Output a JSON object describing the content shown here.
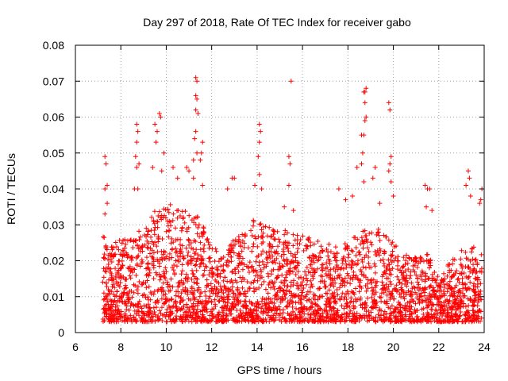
{
  "chart_data": {
    "type": "scatter",
    "title": "Day 297 of 2018, Rate Of TEC Index for receiver gabo",
    "xlabel": "GPS time / hours",
    "ylabel": "ROTI / TECUs",
    "xlim": [
      6,
      24
    ],
    "ylim": [
      0,
      0.08
    ],
    "xticks": [
      6,
      8,
      10,
      12,
      14,
      16,
      18,
      20,
      22,
      24
    ],
    "yticks": [
      0,
      0.01,
      0.02,
      0.03,
      0.04,
      0.05,
      0.06,
      0.07,
      0.08
    ],
    "xtick_labels": [
      "6",
      "8",
      "10",
      "12",
      "14",
      "16",
      "18",
      "20",
      "22",
      "24"
    ],
    "ytick_labels": [
      "0",
      "0.01",
      "0.02",
      "0.03",
      "0.04",
      "0.05",
      "0.06",
      "0.07",
      "0.08"
    ],
    "grid": true,
    "marker": "plus",
    "color": "#ff0000",
    "x_data_range": [
      7.2,
      23.9
    ],
    "envelope": {
      "x": [
        7.2,
        7.5,
        8.0,
        8.5,
        9.0,
        9.5,
        10.0,
        10.5,
        11.0,
        11.5,
        12.0,
        12.5,
        13.0,
        13.5,
        14.0,
        14.5,
        15.0,
        15.5,
        16.0,
        16.5,
        17.0,
        17.5,
        18.0,
        18.5,
        19.0,
        19.5,
        20.0,
        20.5,
        21.0,
        21.5,
        22.0,
        22.5,
        23.0,
        23.5,
        23.9
      ],
      "typical_max": [
        0.028,
        0.024,
        0.026,
        0.027,
        0.03,
        0.034,
        0.036,
        0.035,
        0.034,
        0.032,
        0.024,
        0.022,
        0.026,
        0.03,
        0.032,
        0.03,
        0.028,
        0.029,
        0.027,
        0.026,
        0.025,
        0.024,
        0.026,
        0.028,
        0.03,
        0.029,
        0.026,
        0.022,
        0.021,
        0.022,
        0.016,
        0.02,
        0.023,
        0.024,
        0.022
      ]
    },
    "notable_points": [
      {
        "x": 7.3,
        "y": 0.049
      },
      {
        "x": 7.35,
        "y": 0.047
      },
      {
        "x": 7.4,
        "y": 0.041
      },
      {
        "x": 7.3,
        "y": 0.04
      },
      {
        "x": 7.4,
        "y": 0.036
      },
      {
        "x": 7.3,
        "y": 0.033
      },
      {
        "x": 8.7,
        "y": 0.058
      },
      {
        "x": 8.75,
        "y": 0.056
      },
      {
        "x": 8.7,
        "y": 0.053
      },
      {
        "x": 8.65,
        "y": 0.049
      },
      {
        "x": 8.8,
        "y": 0.047
      },
      {
        "x": 8.7,
        "y": 0.046
      },
      {
        "x": 8.6,
        "y": 0.04
      },
      {
        "x": 8.75,
        "y": 0.04
      },
      {
        "x": 9.7,
        "y": 0.061
      },
      {
        "x": 9.75,
        "y": 0.06
      },
      {
        "x": 9.5,
        "y": 0.058
      },
      {
        "x": 9.6,
        "y": 0.056
      },
      {
        "x": 9.55,
        "y": 0.053
      },
      {
        "x": 9.9,
        "y": 0.05
      },
      {
        "x": 9.8,
        "y": 0.045
      },
      {
        "x": 9.4,
        "y": 0.046
      },
      {
        "x": 10.3,
        "y": 0.046
      },
      {
        "x": 10.5,
        "y": 0.043
      },
      {
        "x": 10.9,
        "y": 0.046
      },
      {
        "x": 11.0,
        "y": 0.045
      },
      {
        "x": 11.3,
        "y": 0.071
      },
      {
        "x": 11.35,
        "y": 0.07
      },
      {
        "x": 11.3,
        "y": 0.066
      },
      {
        "x": 11.35,
        "y": 0.065
      },
      {
        "x": 11.3,
        "y": 0.062
      },
      {
        "x": 11.4,
        "y": 0.061
      },
      {
        "x": 11.3,
        "y": 0.056
      },
      {
        "x": 11.25,
        "y": 0.054
      },
      {
        "x": 11.2,
        "y": 0.048
      },
      {
        "x": 11.35,
        "y": 0.05
      },
      {
        "x": 11.6,
        "y": 0.053
      },
      {
        "x": 11.55,
        "y": 0.05
      },
      {
        "x": 11.5,
        "y": 0.048
      },
      {
        "x": 11.2,
        "y": 0.043
      },
      {
        "x": 11.6,
        "y": 0.041
      },
      {
        "x": 12.9,
        "y": 0.043
      },
      {
        "x": 13.0,
        "y": 0.043
      },
      {
        "x": 12.7,
        "y": 0.04
      },
      {
        "x": 13.9,
        "y": 0.041
      },
      {
        "x": 14.1,
        "y": 0.058
      },
      {
        "x": 14.15,
        "y": 0.056
      },
      {
        "x": 14.1,
        "y": 0.053
      },
      {
        "x": 14.05,
        "y": 0.049
      },
      {
        "x": 14.1,
        "y": 0.044
      },
      {
        "x": 14.2,
        "y": 0.04
      },
      {
        "x": 15.5,
        "y": 0.07
      },
      {
        "x": 15.4,
        "y": 0.049
      },
      {
        "x": 15.45,
        "y": 0.047
      },
      {
        "x": 15.4,
        "y": 0.041
      },
      {
        "x": 15.2,
        "y": 0.035
      },
      {
        "x": 15.6,
        "y": 0.034
      },
      {
        "x": 17.6,
        "y": 0.04
      },
      {
        "x": 17.9,
        "y": 0.037
      },
      {
        "x": 18.2,
        "y": 0.038
      },
      {
        "x": 18.4,
        "y": 0.046
      },
      {
        "x": 18.6,
        "y": 0.055
      },
      {
        "x": 18.75,
        "y": 0.067
      },
      {
        "x": 18.8,
        "y": 0.068
      },
      {
        "x": 18.7,
        "y": 0.067
      },
      {
        "x": 18.75,
        "y": 0.064
      },
      {
        "x": 18.8,
        "y": 0.06
      },
      {
        "x": 18.75,
        "y": 0.059
      },
      {
        "x": 18.7,
        "y": 0.055
      },
      {
        "x": 18.65,
        "y": 0.05
      },
      {
        "x": 18.6,
        "y": 0.047
      },
      {
        "x": 18.7,
        "y": 0.042
      },
      {
        "x": 19.2,
        "y": 0.046
      },
      {
        "x": 19.1,
        "y": 0.043
      },
      {
        "x": 19.4,
        "y": 0.036
      },
      {
        "x": 19.8,
        "y": 0.064
      },
      {
        "x": 19.85,
        "y": 0.062
      },
      {
        "x": 19.9,
        "y": 0.049
      },
      {
        "x": 19.85,
        "y": 0.047
      },
      {
        "x": 19.8,
        "y": 0.045
      },
      {
        "x": 19.9,
        "y": 0.042
      },
      {
        "x": 20.0,
        "y": 0.038
      },
      {
        "x": 21.4,
        "y": 0.041
      },
      {
        "x": 21.5,
        "y": 0.04
      },
      {
        "x": 21.6,
        "y": 0.04
      },
      {
        "x": 21.45,
        "y": 0.035
      },
      {
        "x": 21.7,
        "y": 0.034
      },
      {
        "x": 23.3,
        "y": 0.045
      },
      {
        "x": 23.35,
        "y": 0.043
      },
      {
        "x": 23.2,
        "y": 0.041
      },
      {
        "x": 23.4,
        "y": 0.038
      },
      {
        "x": 23.9,
        "y": 0.04
      },
      {
        "x": 23.85,
        "y": 0.037
      },
      {
        "x": 23.8,
        "y": 0.036
      }
    ]
  }
}
